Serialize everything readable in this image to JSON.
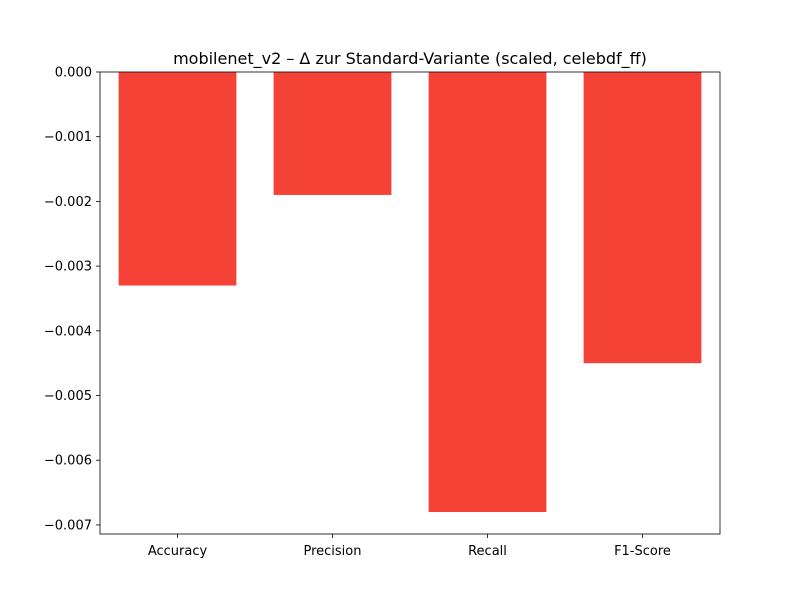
{
  "chart_data": {
    "type": "bar",
    "title": "mobilenet_v2 – Δ zur Standard-Variante (scaled, celebdf_ff)",
    "xlabel": "",
    "ylabel": "",
    "categories": [
      "Accuracy",
      "Precision",
      "Recall",
      "F1-Score"
    ],
    "values": [
      -0.0033,
      -0.0019,
      -0.0068,
      -0.0045
    ],
    "ylim": [
      -0.00714,
      0.0
    ],
    "yticks": [
      0.0,
      -0.001,
      -0.002,
      -0.003,
      -0.004,
      -0.005,
      -0.006,
      -0.007
    ],
    "ytick_labels": [
      "0.000",
      "−0.001",
      "−0.002",
      "−0.003",
      "−0.004",
      "−0.005",
      "−0.006",
      "−0.007"
    ],
    "grid": false,
    "legend": "none",
    "colors": {
      "bar": "#f44336",
      "axis": "#000000",
      "background": "#ffffff"
    }
  }
}
